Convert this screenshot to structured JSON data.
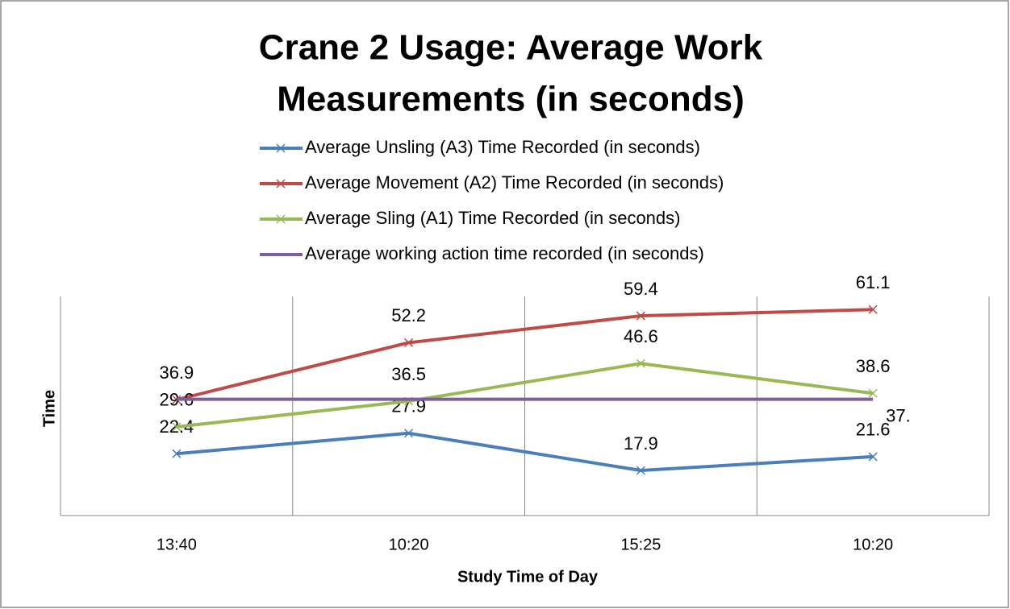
{
  "chart_data": {
    "type": "line",
    "title": [
      "Crane 2 Usage: Average Work",
      "Measurements (in seconds)"
    ],
    "x_label": "Study Time of Day",
    "y_label": "Time",
    "categories": [
      "13:40",
      "10:20",
      "15:25",
      "10:20"
    ],
    "series": [
      {
        "name": "Average Unsling (A3) Time Recorded (in seconds)",
        "color": "#4a7ebb",
        "marker": "x",
        "values": [
          22.4,
          27.9,
          17.9,
          21.6
        ]
      },
      {
        "name": "Average Movement (A2) Time Recorded (in seconds)",
        "color": "#be4b48",
        "marker": "x",
        "values": [
          36.9,
          52.2,
          59.4,
          61.1
        ]
      },
      {
        "name": "Average Sling (A1) Time Recorded (in seconds)",
        "color": "#98b954",
        "marker": "x",
        "values": [
          29.6,
          36.5,
          46.6,
          38.6
        ]
      },
      {
        "name": "Average working action time recorded (in seconds)",
        "color": "#7d5fa0",
        "values": [
          37,
          37,
          37,
          37
        ],
        "value_labels": [
          null,
          null,
          null,
          "37."
        ]
      }
    ],
    "ylim": [
      5.8,
      64.6
    ],
    "legend": "top"
  }
}
